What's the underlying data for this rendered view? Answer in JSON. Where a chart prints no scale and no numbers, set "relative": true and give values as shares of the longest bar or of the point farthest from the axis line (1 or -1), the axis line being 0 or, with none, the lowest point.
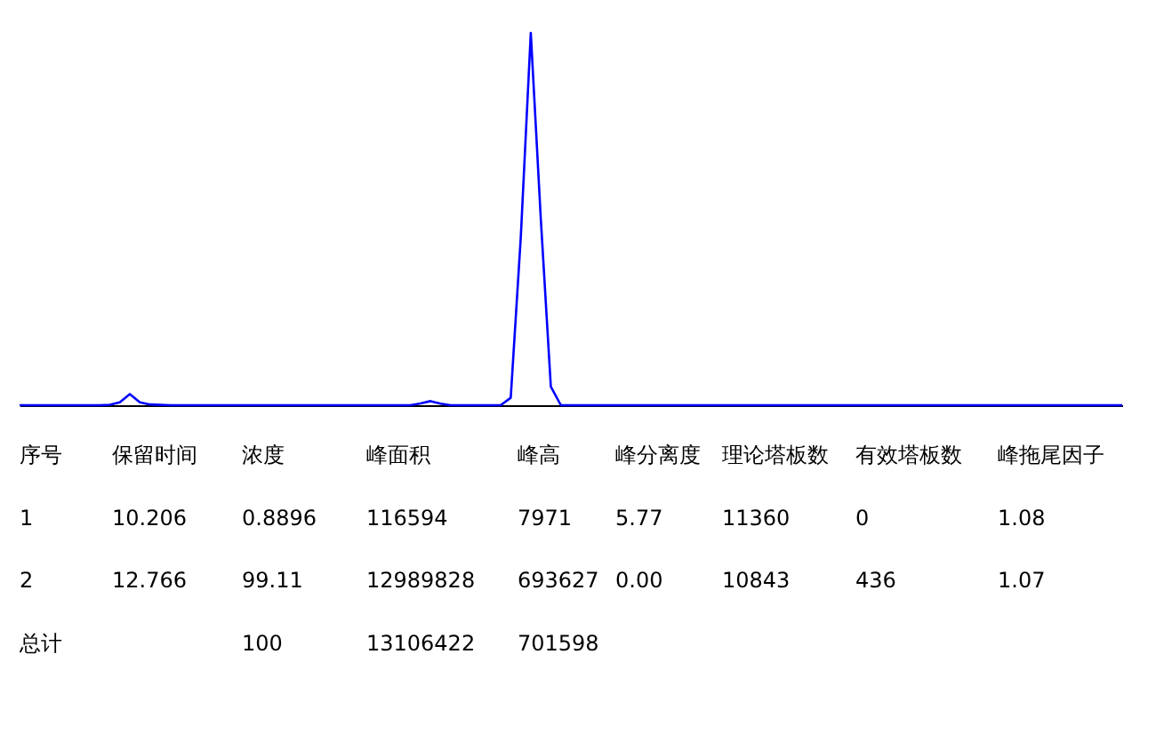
{
  "chart_data": {
    "type": "line",
    "relative": true,
    "tick_labels": false,
    "grid": false,
    "marker": "none",
    "line_style": "solid",
    "categories": [
      null,
      null,
      null,
      null,
      null,
      null,
      null,
      null,
      null,
      null,
      null,
      null,
      null,
      null,
      null,
      null,
      null,
      null,
      null,
      null,
      null,
      null,
      null,
      null,
      null,
      null,
      null,
      null,
      null,
      null,
      null,
      null,
      null,
      null,
      null,
      null,
      null,
      null,
      null,
      null,
      null,
      null,
      null,
      null,
      null,
      null,
      null,
      null,
      null,
      null,
      null,
      null,
      null,
      null,
      null,
      null,
      null,
      null,
      null,
      null,
      null,
      null,
      null,
      null,
      null,
      null,
      null,
      null,
      null,
      null,
      null,
      null,
      null,
      null,
      null,
      null,
      null,
      null,
      null,
      null,
      null,
      null,
      null,
      null,
      null,
      null,
      null,
      null,
      null,
      null,
      null,
      null,
      null,
      null,
      null,
      null,
      null,
      null,
      null,
      null,
      null,
      null,
      null,
      null,
      null,
      null,
      null,
      null,
      null,
      null,
      null
    ],
    "series": [
      {
        "color": "#0000ff",
        "values": [
          0,
          0,
          0,
          0,
          0,
          0,
          0,
          0,
          0,
          0.001,
          0.008,
          0.03,
          0.008,
          0.002,
          0.001,
          0,
          0,
          0,
          0,
          0,
          0,
          0,
          0,
          0,
          0,
          0,
          0,
          0,
          0,
          0,
          0,
          0,
          0,
          0,
          0,
          0,
          0,
          0,
          0,
          0,
          0.005,
          0.011,
          0.004,
          0,
          0,
          0,
          0,
          0,
          0,
          0.02,
          0.45,
          1.0,
          0.5,
          0.05,
          0,
          0,
          0,
          0,
          0,
          0,
          0,
          0,
          0,
          0,
          0,
          0,
          0,
          0,
          0,
          0,
          0,
          0,
          0,
          0,
          0,
          0,
          0,
          0,
          0,
          0,
          0,
          0,
          0,
          0,
          0,
          0,
          0,
          0,
          0,
          0,
          0,
          0,
          0,
          0,
          0,
          0,
          0,
          0,
          0,
          0,
          0,
          0,
          0,
          0,
          0,
          0,
          0,
          0,
          0,
          0,
          0
        ]
      }
    ],
    "annotations": [
      "序号",
      "保留时间",
      "浓度",
      "峰面积",
      "峰高",
      "峰分离度",
      "理论塔板数",
      "有效塔板数",
      "峰拖尾因子",
      "1",
      "10.206",
      "0.8896",
      "116594",
      "7971",
      "5.77",
      "11360",
      "0",
      "1.08",
      "2",
      "12.766",
      "99.11",
      "12989828",
      "693627",
      "0.00",
      "10843",
      "436",
      "1.07",
      "总计",
      null,
      "100",
      "13106422",
      "701598",
      null,
      null,
      null,
      null
    ]
  }
}
